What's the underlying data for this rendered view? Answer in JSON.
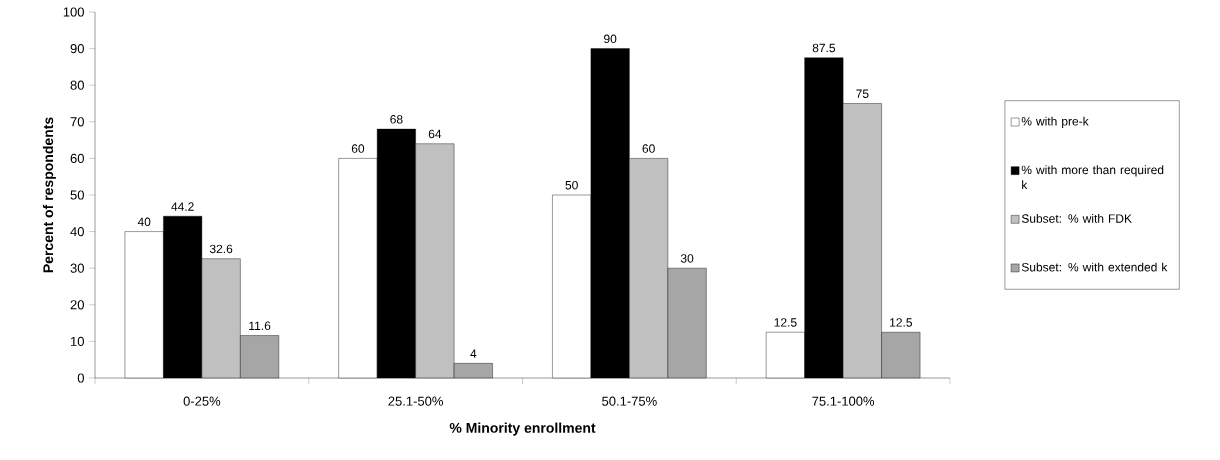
{
  "chart_data": {
    "type": "bar",
    "xlabel": "% Minority enrollment",
    "ylabel": "Percent of respondents",
    "categories": [
      "0-25%",
      "25.1-50%",
      "50.1-75%",
      "75.1-100%"
    ],
    "series": [
      {
        "name": "% with pre-k",
        "color": "#ffffff",
        "values": [
          40,
          60,
          50,
          12.5
        ]
      },
      {
        "name": "% with more than required k",
        "color": "#000000",
        "values": [
          44.2,
          68,
          90,
          87.5
        ]
      },
      {
        "name": "Subset: % with FDK",
        "color": "#c0c0c0",
        "values": [
          32.6,
          64,
          60,
          75
        ]
      },
      {
        "name": "Subset: % with extended k",
        "color": "#a6a6a6",
        "values": [
          11.6,
          4,
          30,
          12.5
        ]
      }
    ],
    "ylim": [
      0,
      100
    ],
    "yticks": [
      0,
      10,
      20,
      30,
      40,
      50,
      60,
      70,
      80,
      90,
      100
    ],
    "data_labels": true,
    "legend": "right"
  }
}
